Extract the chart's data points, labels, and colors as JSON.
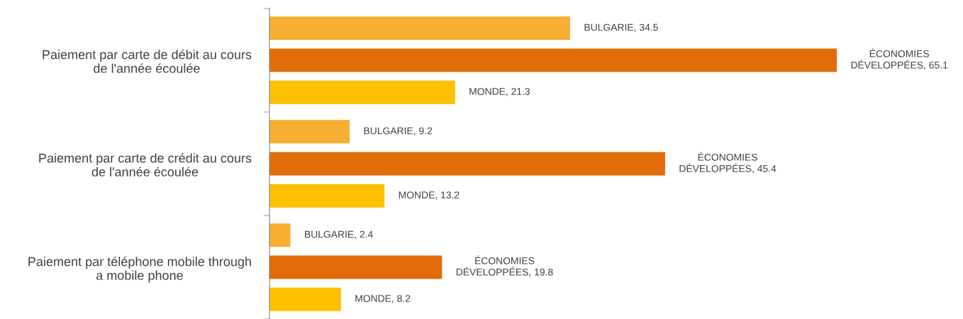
{
  "chart_data": {
    "type": "bar",
    "orientation": "horizontal",
    "categories": [
      "Paiement par carte de débit au cours de l'année écoulée",
      "Paiement par carte de crédit au cours de l'année écoulée",
      "Paiement par téléphone mobile through a mobile phone"
    ],
    "series": [
      {
        "color": "#f7ae33",
        "values": [
          34.5,
          9.2,
          2.4
        ],
        "value_labels": [
          "BULGARIE, 34.5",
          "BULGARIE, 9.2",
          "BULGARIE, 2.4"
        ]
      },
      {
        "color": "#e36c0a",
        "values": [
          65.1,
          45.4,
          19.8
        ],
        "value_labels": [
          "ÉCONOMIES DÉVELOPPÉES, 65.1",
          "ÉCONOMIES DÉVELOPPÉES, 45.4",
          "ÉCONOMIES DÉVELOPPÉES, 19.8"
        ]
      },
      {
        "color": "#ffc000",
        "values": [
          21.3,
          13.2,
          8.2
        ],
        "value_labels": [
          "MONDE, 21.3",
          "MONDE, 13.2",
          "MONDE, 8.2"
        ]
      }
    ],
    "tick_labels": "y",
    "grid": false,
    "legend": false
  }
}
